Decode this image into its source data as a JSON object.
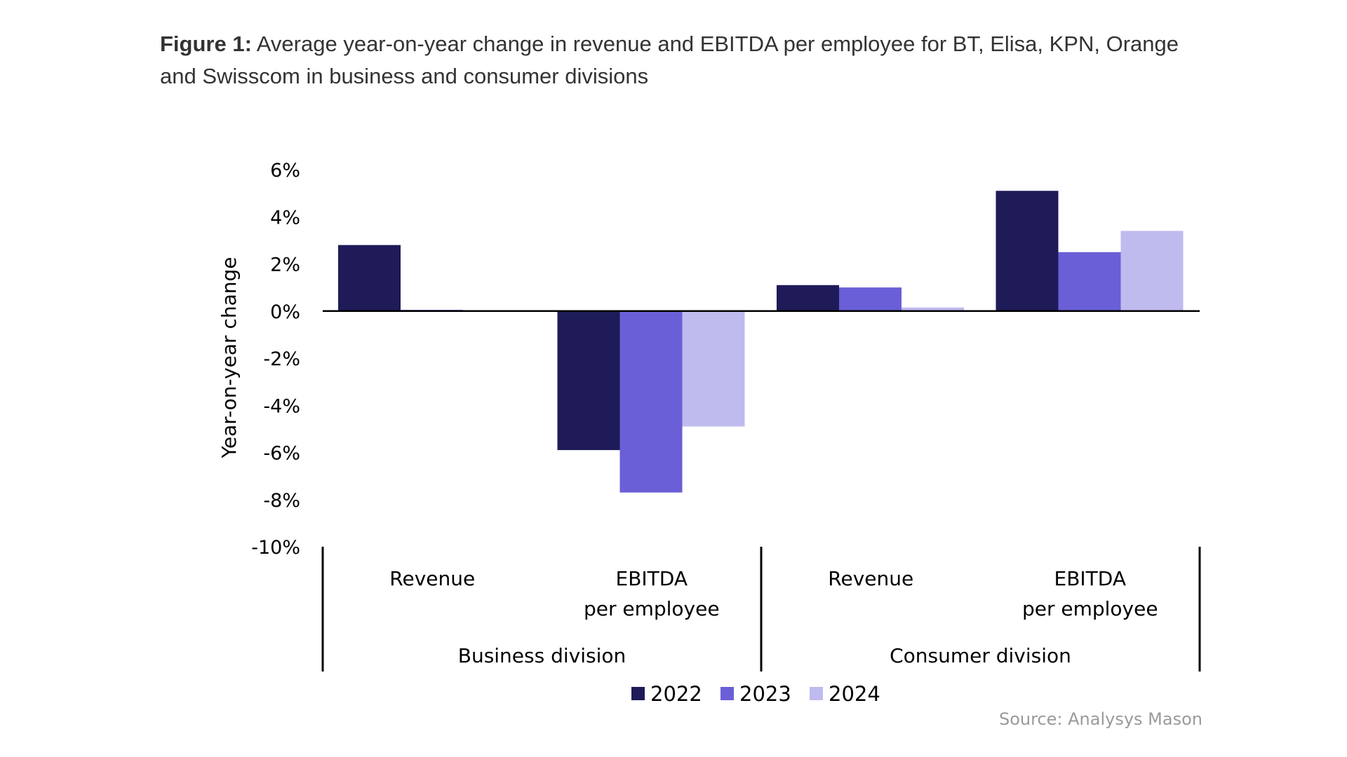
{
  "caption": {
    "label": "Figure 1:",
    "text": " Average year-on-year change in revenue and EBITDA per employee for BT, Elisa, KPN, Orange and Swisscom in business and consumer divisions"
  },
  "chart_data": {
    "type": "bar",
    "ylabel": "Year-on-year change",
    "ylim": [
      -10,
      6
    ],
    "yticks": [
      6,
      4,
      2,
      0,
      -2,
      -4,
      -6,
      -8,
      -10
    ],
    "ytick_labels": [
      "6%",
      "4%",
      "2%",
      "0%",
      "-2%",
      "-4%",
      "-6%",
      "-8%",
      "-10%"
    ],
    "categories": [
      "Revenue",
      "EBITDA per employee",
      "Revenue",
      "EBITDA per employee"
    ],
    "category_lines": [
      [
        "Revenue"
      ],
      [
        "EBITDA",
        "per employee"
      ],
      [
        "Revenue"
      ],
      [
        "EBITDA",
        "per employee"
      ]
    ],
    "groups": [
      "Business division",
      "Consumer division"
    ],
    "series": [
      {
        "name": "2022",
        "color": "#1e1b58",
        "values": [
          2.8,
          -5.9,
          1.1,
          5.1
        ]
      },
      {
        "name": "2023",
        "color": "#6a5fd6",
        "values": [
          0.05,
          -7.7,
          1.0,
          2.5
        ]
      },
      {
        "name": "2024",
        "color": "#bfbbee",
        "values": [
          0.0,
          -4.9,
          0.15,
          3.4
        ]
      }
    ],
    "legend_position": "bottom"
  },
  "source": "Source: Analysys Mason"
}
